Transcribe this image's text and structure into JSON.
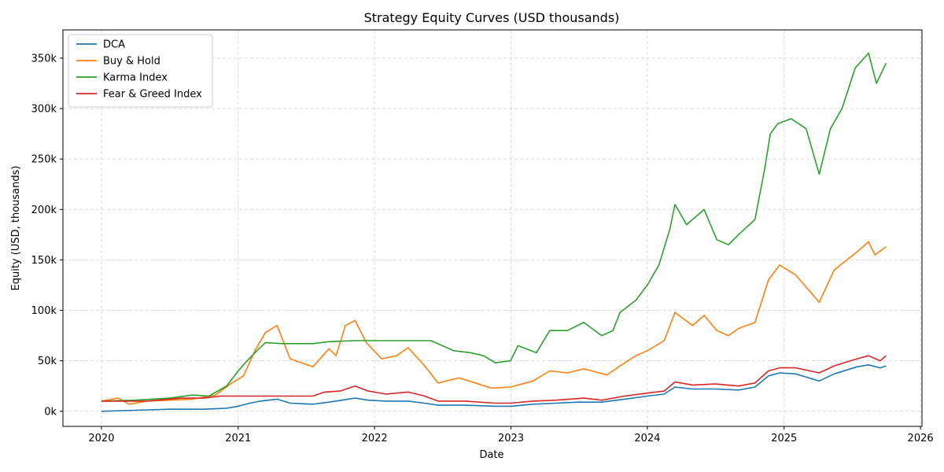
{
  "chart_data": {
    "type": "line",
    "title": "Strategy Equity Curves (USD thousands)",
    "xlabel": "Date",
    "ylabel": "Equity (USD, thousands)",
    "xlim": [
      "2019-09-20",
      "2026-01-05"
    ],
    "ylim": [
      -15,
      378
    ],
    "x_ticks": [
      {
        "value": "2020-01-01",
        "label": "2020"
      },
      {
        "value": "2021-01-01",
        "label": "2021"
      },
      {
        "value": "2022-01-01",
        "label": "2022"
      },
      {
        "value": "2023-01-01",
        "label": "2023"
      },
      {
        "value": "2024-01-01",
        "label": "2024"
      },
      {
        "value": "2025-01-01",
        "label": "2025"
      },
      {
        "value": "2026-01-01",
        "label": "2026"
      }
    ],
    "y_ticks": [
      {
        "value": 0,
        "label": "0k"
      },
      {
        "value": 50,
        "label": "50k"
      },
      {
        "value": 100,
        "label": "100k"
      },
      {
        "value": 150,
        "label": "150k"
      },
      {
        "value": 200,
        "label": "200k"
      },
      {
        "value": 250,
        "label": "250k"
      },
      {
        "value": 300,
        "label": "300k"
      },
      {
        "value": 350,
        "label": "350k"
      }
    ],
    "grid": true,
    "legend_position": "top-left",
    "series": [
      {
        "name": "DCA",
        "color": "#1f77b4",
        "points": [
          [
            "2020-01-01",
            0
          ],
          [
            "2020-04-01",
            1
          ],
          [
            "2020-07-01",
            2
          ],
          [
            "2020-10-01",
            2
          ],
          [
            "2020-12-01",
            3
          ],
          [
            "2021-01-01",
            5
          ],
          [
            "2021-02-01",
            8
          ],
          [
            "2021-03-01",
            10
          ],
          [
            "2021-04-15",
            12
          ],
          [
            "2021-05-20",
            8
          ],
          [
            "2021-07-20",
            7
          ],
          [
            "2021-09-01",
            9
          ],
          [
            "2021-11-10",
            13
          ],
          [
            "2021-12-15",
            11
          ],
          [
            "2022-02-01",
            10
          ],
          [
            "2022-04-01",
            10
          ],
          [
            "2022-05-15",
            8
          ],
          [
            "2022-06-20",
            6
          ],
          [
            "2022-09-01",
            6
          ],
          [
            "2022-11-20",
            5
          ],
          [
            "2023-01-01",
            5
          ],
          [
            "2023-03-01",
            7
          ],
          [
            "2023-05-01",
            8
          ],
          [
            "2023-07-01",
            9
          ],
          [
            "2023-09-01",
            9
          ],
          [
            "2023-11-01",
            12
          ],
          [
            "2024-01-01",
            15
          ],
          [
            "2024-02-15",
            17
          ],
          [
            "2024-03-15",
            24
          ],
          [
            "2024-05-01",
            22
          ],
          [
            "2024-07-01",
            22
          ],
          [
            "2024-09-01",
            21
          ],
          [
            "2024-10-15",
            24
          ],
          [
            "2024-11-20",
            35
          ],
          [
            "2024-12-20",
            38
          ],
          [
            "2025-02-01",
            37
          ],
          [
            "2025-04-05",
            30
          ],
          [
            "2025-05-15",
            37
          ],
          [
            "2025-07-15",
            44
          ],
          [
            "2025-08-15",
            46
          ],
          [
            "2025-09-15",
            43
          ],
          [
            "2025-10-01",
            45
          ]
        ]
      },
      {
        "name": "Buy & Hold",
        "color": "#ff7f0e",
        "points": [
          [
            "2020-01-01",
            10
          ],
          [
            "2020-02-15",
            13
          ],
          [
            "2020-03-15",
            7
          ],
          [
            "2020-05-01",
            10
          ],
          [
            "2020-07-01",
            11
          ],
          [
            "2020-09-01",
            12
          ],
          [
            "2020-11-01",
            16
          ],
          [
            "2020-12-15",
            28
          ],
          [
            "2021-01-15",
            35
          ],
          [
            "2021-02-15",
            60
          ],
          [
            "2021-03-15",
            78
          ],
          [
            "2021-04-15",
            85
          ],
          [
            "2021-05-20",
            52
          ],
          [
            "2021-07-20",
            44
          ],
          [
            "2021-09-01",
            62
          ],
          [
            "2021-09-20",
            55
          ],
          [
            "2021-10-15",
            85
          ],
          [
            "2021-11-10",
            90
          ],
          [
            "2021-12-10",
            68
          ],
          [
            "2022-01-20",
            52
          ],
          [
            "2022-03-01",
            55
          ],
          [
            "2022-04-01",
            63
          ],
          [
            "2022-05-15",
            45
          ],
          [
            "2022-06-20",
            28
          ],
          [
            "2022-08-15",
            33
          ],
          [
            "2022-11-10",
            23
          ],
          [
            "2022-12-31",
            24
          ],
          [
            "2023-03-01",
            30
          ],
          [
            "2023-04-15",
            40
          ],
          [
            "2023-06-01",
            38
          ],
          [
            "2023-07-15",
            42
          ],
          [
            "2023-09-15",
            36
          ],
          [
            "2023-10-20",
            45
          ],
          [
            "2023-12-01",
            55
          ],
          [
            "2024-01-01",
            60
          ],
          [
            "2024-02-15",
            70
          ],
          [
            "2024-03-15",
            98
          ],
          [
            "2024-05-01",
            85
          ],
          [
            "2024-06-01",
            95
          ],
          [
            "2024-07-05",
            80
          ],
          [
            "2024-08-05",
            75
          ],
          [
            "2024-09-01",
            82
          ],
          [
            "2024-10-15",
            88
          ],
          [
            "2024-11-20",
            130
          ],
          [
            "2024-12-20",
            145
          ],
          [
            "2025-02-01",
            135
          ],
          [
            "2025-04-05",
            108
          ],
          [
            "2025-05-15",
            140
          ],
          [
            "2025-07-15",
            158
          ],
          [
            "2025-08-15",
            168
          ],
          [
            "2025-09-01",
            155
          ],
          [
            "2025-10-01",
            163
          ]
        ]
      },
      {
        "name": "Karma Index",
        "color": "#2ca02c",
        "points": [
          [
            "2020-01-01",
            10
          ],
          [
            "2020-04-01",
            11
          ],
          [
            "2020-07-01",
            13
          ],
          [
            "2020-09-01",
            16
          ],
          [
            "2020-10-15",
            15
          ],
          [
            "2020-12-01",
            25
          ],
          [
            "2021-01-01",
            40
          ],
          [
            "2021-01-20",
            48
          ],
          [
            "2021-02-20",
            60
          ],
          [
            "2021-03-15",
            68
          ],
          [
            "2021-05-01",
            67
          ],
          [
            "2021-07-20",
            67
          ],
          [
            "2021-09-01",
            69
          ],
          [
            "2021-11-10",
            70
          ],
          [
            "2022-06-01",
            70
          ],
          [
            "2022-07-01",
            65
          ],
          [
            "2022-08-01",
            60
          ],
          [
            "2022-09-15",
            58
          ],
          [
            "2022-10-20",
            55
          ],
          [
            "2022-11-20",
            48
          ],
          [
            "2022-12-31",
            50
          ],
          [
            "2023-01-20",
            65
          ],
          [
            "2023-03-10",
            58
          ],
          [
            "2023-04-15",
            80
          ],
          [
            "2023-06-01",
            80
          ],
          [
            "2023-07-15",
            88
          ],
          [
            "2023-09-01",
            75
          ],
          [
            "2023-10-01",
            80
          ],
          [
            "2023-10-20",
            98
          ],
          [
            "2023-12-01",
            110
          ],
          [
            "2024-01-01",
            125
          ],
          [
            "2024-02-01",
            145
          ],
          [
            "2024-03-01",
            180
          ],
          [
            "2024-03-15",
            205
          ],
          [
            "2024-04-15",
            185
          ],
          [
            "2024-06-01",
            200
          ],
          [
            "2024-07-05",
            170
          ],
          [
            "2024-08-05",
            165
          ],
          [
            "2024-09-01",
            175
          ],
          [
            "2024-10-15",
            190
          ],
          [
            "2024-11-10",
            240
          ],
          [
            "2024-11-25",
            275
          ],
          [
            "2024-12-15",
            285
          ],
          [
            "2025-01-20",
            290
          ],
          [
            "2025-03-01",
            280
          ],
          [
            "2025-04-05",
            235
          ],
          [
            "2025-05-05",
            280
          ],
          [
            "2025-06-05",
            300
          ],
          [
            "2025-07-10",
            340
          ],
          [
            "2025-08-15",
            355
          ],
          [
            "2025-09-05",
            325
          ],
          [
            "2025-10-01",
            345
          ]
        ]
      },
      {
        "name": "Fear & Greed Index",
        "color": "#d62728",
        "points": [
          [
            "2020-01-01",
            10
          ],
          [
            "2020-05-01",
            10
          ],
          [
            "2020-08-01",
            13
          ],
          [
            "2020-10-01",
            13
          ],
          [
            "2020-11-15",
            15
          ],
          [
            "2021-04-20",
            15
          ],
          [
            "2021-05-20",
            15
          ],
          [
            "2021-07-20",
            15
          ],
          [
            "2021-08-20",
            19
          ],
          [
            "2021-10-01",
            20
          ],
          [
            "2021-11-10",
            25
          ],
          [
            "2021-12-15",
            20
          ],
          [
            "2022-02-01",
            17
          ],
          [
            "2022-03-01",
            18
          ],
          [
            "2022-04-01",
            19
          ],
          [
            "2022-05-15",
            15
          ],
          [
            "2022-06-20",
            10
          ],
          [
            "2022-09-01",
            10
          ],
          [
            "2022-11-20",
            8
          ],
          [
            "2022-12-31",
            8
          ],
          [
            "2023-03-01",
            10
          ],
          [
            "2023-05-01",
            11
          ],
          [
            "2023-07-15",
            13
          ],
          [
            "2023-09-01",
            11
          ],
          [
            "2023-11-01",
            15
          ],
          [
            "2024-01-01",
            18
          ],
          [
            "2024-02-15",
            20
          ],
          [
            "2024-03-15",
            29
          ],
          [
            "2024-05-01",
            26
          ],
          [
            "2024-07-01",
            27
          ],
          [
            "2024-09-01",
            25
          ],
          [
            "2024-10-15",
            28
          ],
          [
            "2024-11-20",
            40
          ],
          [
            "2024-12-20",
            43
          ],
          [
            "2025-02-01",
            43
          ],
          [
            "2025-04-05",
            38
          ],
          [
            "2025-05-15",
            45
          ],
          [
            "2025-07-15",
            52
          ],
          [
            "2025-08-15",
            55
          ],
          [
            "2025-09-15",
            50
          ],
          [
            "2025-10-01",
            55
          ]
        ]
      }
    ]
  }
}
